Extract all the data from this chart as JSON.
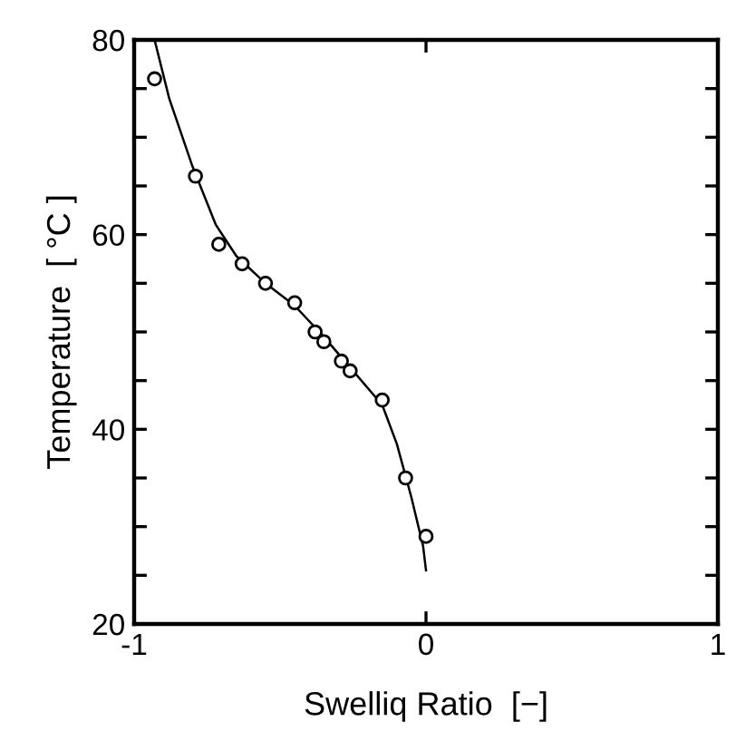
{
  "chart_data": {
    "type": "scatter",
    "xlabel": "Swelliq Ratio  [−]",
    "ylabel": "Temperature  [ °C ]",
    "xlim": [
      -1,
      1
    ],
    "ylim": [
      20,
      80
    ],
    "xticks": [
      -1,
      0,
      1
    ],
    "yticks": [
      20,
      {
        "value": 25,
        "label": null
      },
      {
        "value": 30,
        "label": null
      },
      {
        "value": 35,
        "label": null
      },
      40,
      {
        "value": 45,
        "label": null
      },
      {
        "value": 50,
        "label": null
      },
      {
        "value": 55,
        "label": null
      },
      60,
      {
        "value": 65,
        "label": null
      },
      {
        "value": 70,
        "label": null
      },
      {
        "value": 75,
        "label": null
      },
      80
    ],
    "grid": false,
    "series": [
      {
        "color": "#000000",
        "marker": "circle",
        "x": [
          -0.93,
          -0.79,
          -0.71,
          -0.63,
          -0.55,
          -0.45,
          -0.38,
          -0.35,
          -0.29,
          -0.26,
          -0.15,
          -0.07,
          0.0
        ],
        "values": [
          76,
          66,
          59,
          57,
          55,
          53,
          50,
          49,
          47,
          46,
          43,
          35,
          29
        ]
      },
      {
        "type": "line",
        "color": "#000000",
        "marker": "none",
        "line_style": "solid",
        "x": [
          -0.93,
          -0.88,
          -0.8,
          -0.72,
          -0.65,
          -0.55,
          -0.45,
          -0.35,
          -0.25,
          -0.15,
          -0.1,
          -0.05,
          -0.01,
          0.0
        ],
        "values": [
          80,
          74,
          67,
          61,
          57.8,
          55,
          52.7,
          49.5,
          46,
          42.5,
          38.5,
          33,
          28,
          25.5
        ]
      }
    ]
  }
}
